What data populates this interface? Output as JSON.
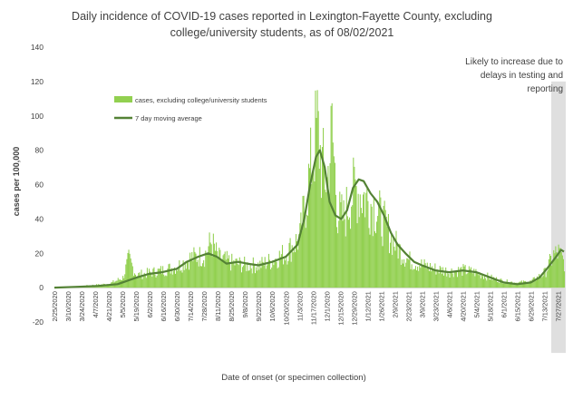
{
  "chart_data": {
    "type": "bar",
    "title_line1": "Daily incidence of COVID-19 cases reported in Lexington-Fayette County, excluding",
    "title_line2": "college/university students, as of 08/02/2021",
    "xlabel": "Date of onset (or specimen collection)",
    "ylabel": "cases per 100,000",
    "ylim": [
      -20,
      140
    ],
    "yticks": [
      -20,
      0,
      20,
      40,
      60,
      80,
      100,
      120,
      140
    ],
    "xticks": [
      "2/25/2020",
      "3/10/2020",
      "3/24/2020",
      "4/7/2020",
      "4/21/2020",
      "5/5/2020",
      "5/19/2020",
      "6/2/2020",
      "6/16/2020",
      "6/30/2020",
      "7/14/2020",
      "7/28/2020",
      "8/11/2020",
      "8/25/2020",
      "9/8/2020",
      "9/22/2020",
      "10/6/2020",
      "10/20/2020",
      "11/3/2020",
      "11/17/2020",
      "12/1/2020",
      "12/15/2020",
      "12/29/2020",
      "1/12/2021",
      "1/26/2021",
      "2/9/2021",
      "2/23/2021",
      "3/9/2021",
      "3/23/2021",
      "4/6/2021",
      "4/20/2021",
      "5/4/2021",
      "5/18/2021",
      "6/1/2021",
      "6/15/2021",
      "6/29/2021",
      "7/13/2021",
      "7/27/2021"
    ],
    "legend": [
      {
        "label": "cases, excluding college/university students",
        "color": "#92d050",
        "kind": "bar"
      },
      {
        "label": "7 day moving average",
        "color": "#548235",
        "kind": "line"
      }
    ],
    "shaded_region": {
      "start": "7/20/2021",
      "end": "8/2/2021",
      "color": "#d9d9d9",
      "label_lines": [
        "Likely to increase due to",
        "delays in testing and",
        "reporting"
      ]
    },
    "moving_average_points": [
      [
        "2/25/2020",
        0
      ],
      [
        "3/20/2020",
        0.5
      ],
      [
        "4/10/2020",
        1
      ],
      [
        "4/30/2020",
        2
      ],
      [
        "5/10/2020",
        4
      ],
      [
        "5/20/2020",
        6
      ],
      [
        "6/1/2020",
        8
      ],
      [
        "6/15/2020",
        9
      ],
      [
        "6/30/2020",
        11
      ],
      [
        "7/10/2020",
        15
      ],
      [
        "7/22/2020",
        18
      ],
      [
        "8/1/2020",
        20
      ],
      [
        "8/10/2020",
        18
      ],
      [
        "8/20/2020",
        14
      ],
      [
        "9/1/2020",
        15
      ],
      [
        "9/10/2020",
        14
      ],
      [
        "9/22/2020",
        13
      ],
      [
        "10/6/2020",
        15
      ],
      [
        "10/20/2020",
        18
      ],
      [
        "11/1/2020",
        25
      ],
      [
        "11/8/2020",
        40
      ],
      [
        "11/14/2020",
        60
      ],
      [
        "11/20/2020",
        76
      ],
      [
        "11/24/2020",
        80
      ],
      [
        "11/29/2020",
        70
      ],
      [
        "12/4/2020",
        50
      ],
      [
        "12/10/2020",
        42
      ],
      [
        "12/16/2020",
        40
      ],
      [
        "12/22/2020",
        45
      ],
      [
        "12/28/2020",
        58
      ],
      [
        "1/3/2021",
        63
      ],
      [
        "1/8/2021",
        62
      ],
      [
        "1/15/2021",
        55
      ],
      [
        "1/22/2021",
        50
      ],
      [
        "1/29/2021",
        42
      ],
      [
        "2/5/2021",
        32
      ],
      [
        "2/12/2021",
        25
      ],
      [
        "2/20/2021",
        20
      ],
      [
        "3/1/2021",
        15
      ],
      [
        "3/9/2021",
        13
      ],
      [
        "3/23/2021",
        10
      ],
      [
        "4/6/2021",
        9
      ],
      [
        "4/20/2021",
        10
      ],
      [
        "5/4/2021",
        9
      ],
      [
        "5/18/2021",
        6
      ],
      [
        "6/1/2021",
        3
      ],
      [
        "6/15/2021",
        2
      ],
      [
        "6/29/2021",
        3
      ],
      [
        "7/8/2021",
        6
      ],
      [
        "7/17/2021",
        12
      ],
      [
        "7/25/2021",
        18
      ],
      [
        "7/30/2021",
        22
      ],
      [
        "8/2/2021",
        21
      ]
    ],
    "daily_envelope_points": [
      [
        "2/25/2020",
        0
      ],
      [
        "3/20/2020",
        1
      ],
      [
        "4/21/2020",
        3
      ],
      [
        "5/5/2020",
        8
      ],
      [
        "5/11/2020",
        23
      ],
      [
        "5/19/2020",
        10
      ],
      [
        "6/2/2020",
        12
      ],
      [
        "6/16/2020",
        14
      ],
      [
        "6/30/2020",
        17
      ],
      [
        "7/14/2020",
        24
      ],
      [
        "7/28/2020",
        26
      ],
      [
        "8/4/2020",
        37
      ],
      [
        "8/11/2020",
        24
      ],
      [
        "8/25/2020",
        20
      ],
      [
        "9/8/2020",
        18
      ],
      [
        "9/22/2020",
        18
      ],
      [
        "10/6/2020",
        22
      ],
      [
        "10/20/2020",
        28
      ],
      [
        "11/3/2020",
        40
      ],
      [
        "11/10/2020",
        75
      ],
      [
        "11/17/2020",
        110
      ],
      [
        "11/21/2020",
        130
      ],
      [
        "11/25/2020",
        100
      ],
      [
        "12/1/2020",
        85
      ],
      [
        "12/6/2020",
        125
      ],
      [
        "12/12/2020",
        60
      ],
      [
        "12/18/2020",
        55
      ],
      [
        "12/24/2020",
        70
      ],
      [
        "12/30/2020",
        80
      ],
      [
        "1/5/2021",
        75
      ],
      [
        "1/12/2021",
        70
      ],
      [
        "1/19/2021",
        65
      ],
      [
        "1/26/2021",
        55
      ],
      [
        "2/2/2021",
        45
      ],
      [
        "2/9/2021",
        35
      ],
      [
        "2/16/2021",
        28
      ],
      [
        "2/23/2021",
        22
      ],
      [
        "3/9/2021",
        18
      ],
      [
        "3/23/2021",
        15
      ],
      [
        "4/6/2021",
        13
      ],
      [
        "4/20/2021",
        14
      ],
      [
        "5/4/2021",
        12
      ],
      [
        "5/18/2021",
        8
      ],
      [
        "6/1/2021",
        5
      ],
      [
        "6/15/2021",
        4
      ],
      [
        "6/29/2021",
        5
      ],
      [
        "7/13/2021",
        12
      ],
      [
        "7/22/2021",
        26
      ],
      [
        "7/27/2021",
        28
      ],
      [
        "8/2/2021",
        20
      ]
    ]
  }
}
